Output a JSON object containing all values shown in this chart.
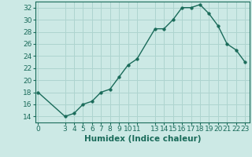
{
  "xlabel": "Humidex (Indice chaleur)",
  "x": [
    0,
    3,
    4,
    5,
    6,
    7,
    8,
    9,
    10,
    11,
    13,
    14,
    15,
    16,
    17,
    18,
    19,
    20,
    21,
    22,
    23
  ],
  "y": [
    18,
    14,
    14.5,
    16,
    16.5,
    18,
    18.5,
    20.5,
    22.5,
    23.5,
    28.5,
    28.5,
    30,
    32,
    32,
    32.5,
    31,
    29,
    26,
    25,
    23
  ],
  "line_color": "#1a6b5a",
  "marker_color": "#1a6b5a",
  "bg_color": "#cce9e5",
  "grid_color": "#aed4cf",
  "axis_color": "#1a6b5a",
  "ylim": [
    13,
    33
  ],
  "xlim": [
    -0.3,
    23.5
  ],
  "yticks": [
    14,
    16,
    18,
    20,
    22,
    24,
    26,
    28,
    30,
    32
  ],
  "xtick_labels": [
    "0",
    "3",
    "4",
    "5",
    "6",
    "7",
    "8",
    "9",
    "10",
    "11",
    "13",
    "14",
    "15",
    "16",
    "17",
    "18",
    "19",
    "20",
    "21",
    "22",
    "23"
  ],
  "xtick_positions": [
    0,
    3,
    4,
    5,
    6,
    7,
    8,
    9,
    10,
    11,
    13,
    14,
    15,
    16,
    17,
    18,
    19,
    20,
    21,
    22,
    23
  ],
  "marker_size": 2.5,
  "line_width": 1.0,
  "xlabel_fontsize": 7.5,
  "tick_fontsize": 6.5
}
